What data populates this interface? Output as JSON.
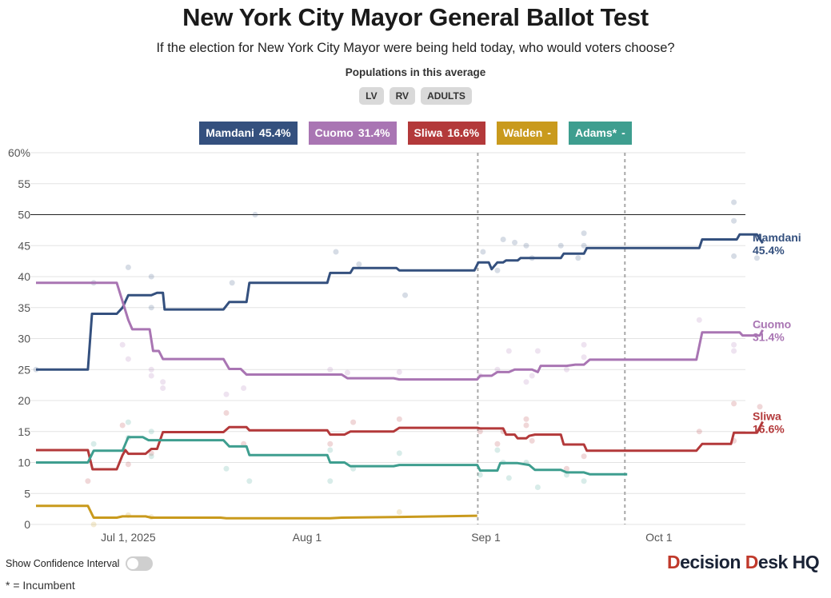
{
  "title": "New York City Mayor General Ballot Test",
  "subtitle": "If the election for New York City Mayor were being held today, who would voters choose?",
  "populations": {
    "label": "Populations in this average",
    "buttons": [
      "LV",
      "RV",
      "ADULTS"
    ]
  },
  "legend": [
    {
      "name": "Mamdani",
      "value": "45.4%",
      "color": "#34507e"
    },
    {
      "name": "Cuomo",
      "value": "31.4%",
      "color": "#a975b3"
    },
    {
      "name": "Sliwa",
      "value": "16.6%",
      "color": "#b3393a"
    },
    {
      "name": "Walden",
      "value": "-",
      "color": "#c99a1d"
    },
    {
      "name": "Adams*",
      "value": "-",
      "color": "#3e9e8f"
    }
  ],
  "controls": {
    "confidence_label": "Show Confidence Interval",
    "confidence_on": false
  },
  "footnote": "* = Incumbent",
  "logo": {
    "part1": "D",
    "part2": "ecision ",
    "part3": "D",
    "part4": "esk HQ"
  },
  "chart_data": {
    "type": "line",
    "title": "New York City Mayor General Ballot Test",
    "xlabel": "",
    "ylabel": "",
    "x_unit": "days since 2025-06-15",
    "xlim": [
      0,
      123
    ],
    "ylim": [
      0,
      60
    ],
    "yticks": [
      0,
      5,
      10,
      15,
      20,
      25,
      30,
      35,
      40,
      45,
      50,
      55,
      60
    ],
    "ytick_labels": [
      "0",
      "5",
      "10",
      "15",
      "20",
      "25",
      "30",
      "35",
      "40",
      "45",
      "50",
      "55",
      "60%"
    ],
    "xticks": [
      {
        "day": 16,
        "label": "Jul 1, 2025"
      },
      {
        "day": 47,
        "label": "Aug 1"
      },
      {
        "day": 78,
        "label": "Sep 1"
      },
      {
        "day": 108,
        "label": "Oct 1"
      }
    ],
    "reference_line": 50,
    "event_lines": [
      {
        "day": 76.6
      },
      {
        "day": 102.1
      }
    ],
    "series": [
      {
        "name": "Mamdani",
        "color": "#34507e",
        "end_label": "Mamdani",
        "end_value": "45.4%",
        "points": [
          [
            0,
            25
          ],
          [
            9,
            25
          ],
          [
            9.7,
            34
          ],
          [
            14,
            34
          ],
          [
            15,
            35
          ],
          [
            16,
            37
          ],
          [
            20,
            37
          ],
          [
            21,
            37.4
          ],
          [
            22,
            37.4
          ],
          [
            22.3,
            34.7
          ],
          [
            32.5,
            34.7
          ],
          [
            33.5,
            35.9
          ],
          [
            36.5,
            35.9
          ],
          [
            37,
            39
          ],
          [
            50.5,
            39
          ],
          [
            51,
            40.6
          ],
          [
            54.5,
            40.6
          ],
          [
            55,
            41.4
          ],
          [
            62.5,
            41.4
          ],
          [
            63,
            41
          ],
          [
            76,
            41
          ],
          [
            76.7,
            42.3
          ],
          [
            78.5,
            42.3
          ],
          [
            79,
            41.2
          ],
          [
            80,
            42.3
          ],
          [
            81,
            42.3
          ],
          [
            81.5,
            42.6
          ],
          [
            83.5,
            42.6
          ],
          [
            84,
            43
          ],
          [
            91,
            43
          ],
          [
            91.5,
            43.7
          ],
          [
            95,
            43.7
          ],
          [
            95.5,
            44.6
          ],
          [
            115,
            44.6
          ],
          [
            115.5,
            46
          ],
          [
            121.5,
            46
          ],
          [
            122,
            46.8
          ],
          [
            125,
            46.8
          ],
          [
            126,
            45.4
          ]
        ]
      },
      {
        "name": "Cuomo",
        "color": "#a975b3",
        "end_label": "Cuomo",
        "end_value": "31.4%",
        "points": [
          [
            0,
            39
          ],
          [
            14,
            39
          ],
          [
            16,
            33
          ],
          [
            16.7,
            31.5
          ],
          [
            19.7,
            31.5
          ],
          [
            20.3,
            28
          ],
          [
            21.3,
            28
          ],
          [
            22,
            26.7
          ],
          [
            32.5,
            26.7
          ],
          [
            33.5,
            25.1
          ],
          [
            35.5,
            25.1
          ],
          [
            36.5,
            24.2
          ],
          [
            53,
            24.2
          ],
          [
            54,
            23.6
          ],
          [
            62,
            23.6
          ],
          [
            63,
            23.4
          ],
          [
            76.5,
            23.4
          ],
          [
            77,
            24
          ],
          [
            79,
            24
          ],
          [
            80,
            24.6
          ],
          [
            82,
            24.6
          ],
          [
            83,
            25
          ],
          [
            86,
            25
          ],
          [
            87,
            24.6
          ],
          [
            87.5,
            25.6
          ],
          [
            92,
            25.6
          ],
          [
            93.5,
            25.8
          ],
          [
            95,
            25.8
          ],
          [
            96,
            26.6
          ],
          [
            114.5,
            26.6
          ],
          [
            115.5,
            31
          ],
          [
            122,
            31
          ],
          [
            122.5,
            30.5
          ],
          [
            125.5,
            30.5
          ],
          [
            126,
            31.4
          ]
        ]
      },
      {
        "name": "Sliwa",
        "color": "#b3393a",
        "end_label": "Sliwa",
        "end_value": "16.6%",
        "points": [
          [
            0,
            12
          ],
          [
            9,
            12
          ],
          [
            9.8,
            8.9
          ],
          [
            14,
            8.9
          ],
          [
            15,
            11.2
          ],
          [
            15.5,
            12
          ],
          [
            16,
            11.4
          ],
          [
            19,
            11.4
          ],
          [
            20,
            12.2
          ],
          [
            21,
            12.2
          ],
          [
            22,
            14.9
          ],
          [
            32.5,
            14.9
          ],
          [
            33.5,
            15.7
          ],
          [
            36.5,
            15.7
          ],
          [
            37,
            15.2
          ],
          [
            50.5,
            15.2
          ],
          [
            51,
            14.5
          ],
          [
            53.5,
            14.5
          ],
          [
            54.5,
            15
          ],
          [
            62,
            15
          ],
          [
            63,
            15.6
          ],
          [
            76.5,
            15.6
          ],
          [
            77,
            15.5
          ],
          [
            81,
            15.5
          ],
          [
            81.5,
            14.5
          ],
          [
            83,
            14.5
          ],
          [
            83.5,
            13.9
          ],
          [
            85,
            13.9
          ],
          [
            85.5,
            14.3
          ],
          [
            86.5,
            14.5
          ],
          [
            91,
            14.5
          ],
          [
            91.5,
            12.9
          ],
          [
            95,
            12.9
          ],
          [
            95.5,
            11.9
          ],
          [
            114.5,
            11.9
          ],
          [
            115.5,
            13
          ],
          [
            120.5,
            13
          ],
          [
            121,
            14.8
          ],
          [
            125,
            14.8
          ],
          [
            126,
            16.6
          ]
        ]
      },
      {
        "name": "Walden",
        "color": "#c99a1d",
        "end_label": "",
        "end_value": "",
        "points": [
          [
            0,
            3
          ],
          [
            9,
            3
          ],
          [
            10,
            1.1
          ],
          [
            14,
            1.1
          ],
          [
            15,
            1.3
          ],
          [
            19,
            1.3
          ],
          [
            20,
            1.1
          ],
          [
            32,
            1.1
          ],
          [
            33,
            1
          ],
          [
            51,
            1
          ],
          [
            53,
            1.1
          ],
          [
            62,
            1.2
          ],
          [
            76.5,
            1.4
          ]
        ]
      },
      {
        "name": "Adams*",
        "color": "#3e9e8f",
        "end_label": "",
        "end_value": "",
        "points": [
          [
            0,
            10
          ],
          [
            9,
            10
          ],
          [
            10,
            11.9
          ],
          [
            15,
            11.9
          ],
          [
            16,
            14.1
          ],
          [
            18.5,
            14.1
          ],
          [
            19.5,
            13.6
          ],
          [
            32.5,
            13.6
          ],
          [
            33.5,
            12.6
          ],
          [
            36.5,
            12.6
          ],
          [
            37,
            11.2
          ],
          [
            50.5,
            11.2
          ],
          [
            51,
            10
          ],
          [
            53.5,
            10
          ],
          [
            54.5,
            9.4
          ],
          [
            62,
            9.4
          ],
          [
            63,
            9.6
          ],
          [
            76.5,
            9.6
          ],
          [
            77,
            8.7
          ],
          [
            80,
            8.7
          ],
          [
            80.5,
            9.9
          ],
          [
            83.5,
            9.9
          ],
          [
            85.5,
            9.6
          ],
          [
            86.5,
            8.8
          ],
          [
            91,
            8.8
          ],
          [
            92,
            8.4
          ],
          [
            95,
            8.4
          ],
          [
            96,
            8.1
          ],
          [
            102.5,
            8.1
          ]
        ]
      }
    ],
    "polls": [
      [
        0,
        25,
        "Mamdani"
      ],
      [
        10,
        39,
        "Mamdani"
      ],
      [
        16,
        41.5,
        "Mamdani"
      ],
      [
        20,
        40,
        "Mamdani"
      ],
      [
        20,
        35,
        "Mamdani"
      ],
      [
        34,
        39,
        "Mamdani"
      ],
      [
        38,
        50,
        "Mamdani"
      ],
      [
        52,
        44,
        "Mamdani"
      ],
      [
        56,
        42,
        "Mamdani"
      ],
      [
        64,
        37,
        "Mamdani"
      ],
      [
        77.5,
        44,
        "Mamdani"
      ],
      [
        80,
        41,
        "Mamdani"
      ],
      [
        81,
        46,
        "Mamdani"
      ],
      [
        83,
        45.5,
        "Mamdani"
      ],
      [
        85,
        45,
        "Mamdani"
      ],
      [
        86,
        43,
        "Mamdani"
      ],
      [
        91,
        45,
        "Mamdani"
      ],
      [
        94,
        43,
        "Mamdani"
      ],
      [
        95,
        47,
        "Mamdani"
      ],
      [
        95,
        45,
        "Mamdani"
      ],
      [
        121,
        52,
        "Mamdani"
      ],
      [
        121,
        49,
        "Mamdani"
      ],
      [
        121,
        43.3,
        "Mamdani"
      ],
      [
        125,
        43,
        "Mamdani"
      ],
      [
        15,
        29,
        "Cuomo"
      ],
      [
        16,
        26.7,
        "Cuomo"
      ],
      [
        20,
        25,
        "Cuomo"
      ],
      [
        20,
        24,
        "Cuomo"
      ],
      [
        22,
        23,
        "Cuomo"
      ],
      [
        22,
        22,
        "Cuomo"
      ],
      [
        33,
        21,
        "Cuomo"
      ],
      [
        36,
        22,
        "Cuomo"
      ],
      [
        51,
        25,
        "Cuomo"
      ],
      [
        54,
        24.5,
        "Cuomo"
      ],
      [
        63,
        24.6,
        "Cuomo"
      ],
      [
        77,
        24,
        "Cuomo"
      ],
      [
        80,
        25,
        "Cuomo"
      ],
      [
        82,
        28,
        "Cuomo"
      ],
      [
        85,
        23,
        "Cuomo"
      ],
      [
        86,
        24,
        "Cuomo"
      ],
      [
        87,
        28,
        "Cuomo"
      ],
      [
        92,
        25,
        "Cuomo"
      ],
      [
        95,
        27,
        "Cuomo"
      ],
      [
        95,
        29,
        "Cuomo"
      ],
      [
        115,
        33,
        "Cuomo"
      ],
      [
        121,
        28,
        "Cuomo"
      ],
      [
        121,
        29,
        "Cuomo"
      ],
      [
        125.5,
        32,
        "Cuomo"
      ],
      [
        9,
        7,
        "Sliwa"
      ],
      [
        15,
        16,
        "Sliwa"
      ],
      [
        16,
        9.7,
        "Sliwa"
      ],
      [
        20,
        11.5,
        "Sliwa"
      ],
      [
        33,
        18,
        "Sliwa"
      ],
      [
        36,
        13,
        "Sliwa"
      ],
      [
        51,
        13,
        "Sliwa"
      ],
      [
        55,
        16.5,
        "Sliwa"
      ],
      [
        63,
        17,
        "Sliwa"
      ],
      [
        77,
        15,
        "Sliwa"
      ],
      [
        80,
        13,
        "Sliwa"
      ],
      [
        81,
        15,
        "Sliwa"
      ],
      [
        85,
        17,
        "Sliwa"
      ],
      [
        85,
        16,
        "Sliwa"
      ],
      [
        86,
        13.5,
        "Sliwa"
      ],
      [
        92,
        9,
        "Sliwa"
      ],
      [
        95,
        11,
        "Sliwa"
      ],
      [
        115,
        15,
        "Sliwa"
      ],
      [
        121,
        19.5,
        "Sliwa"
      ],
      [
        121,
        13.5,
        "Sliwa"
      ],
      [
        125.5,
        19,
        "Sliwa"
      ],
      [
        10,
        0,
        "Walden"
      ],
      [
        16,
        1.5,
        "Walden"
      ],
      [
        20,
        1.2,
        "Walden"
      ],
      [
        63,
        2,
        "Walden"
      ],
      [
        10,
        13,
        "Adams*"
      ],
      [
        16,
        16.5,
        "Adams*"
      ],
      [
        16,
        14,
        "Adams*"
      ],
      [
        20,
        15,
        "Adams*"
      ],
      [
        20,
        11,
        "Adams*"
      ],
      [
        33,
        9,
        "Adams*"
      ],
      [
        37,
        7,
        "Adams*"
      ],
      [
        51,
        12,
        "Adams*"
      ],
      [
        51,
        7,
        "Adams*"
      ],
      [
        55,
        9,
        "Adams*"
      ],
      [
        63,
        11.5,
        "Adams*"
      ],
      [
        77,
        8,
        "Adams*"
      ],
      [
        80,
        12,
        "Adams*"
      ],
      [
        81,
        10,
        "Adams*"
      ],
      [
        82,
        7.5,
        "Adams*"
      ],
      [
        85,
        10,
        "Adams*"
      ],
      [
        87,
        6,
        "Adams*"
      ],
      [
        92,
        8,
        "Adams*"
      ],
      [
        95,
        7,
        "Adams*"
      ]
    ]
  }
}
